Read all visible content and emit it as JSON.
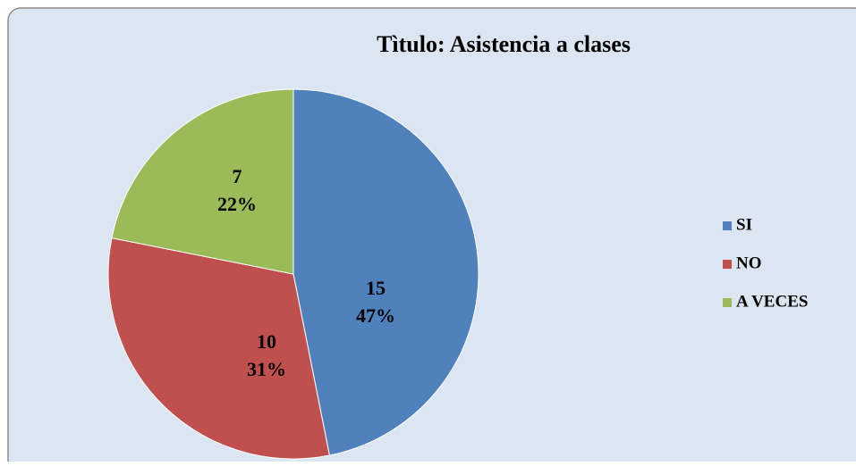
{
  "chart_data": {
    "type": "pie",
    "title": "Tìtulo: Asistencia a clases",
    "categories": [
      "SI",
      "NO",
      "A VECES"
    ],
    "values": [
      15,
      10,
      7
    ],
    "percent_labels": [
      "47%",
      "31%",
      "22%"
    ],
    "colors": [
      "#4f81bd",
      "#c0504d",
      "#9bbb59"
    ],
    "legend": "right"
  }
}
